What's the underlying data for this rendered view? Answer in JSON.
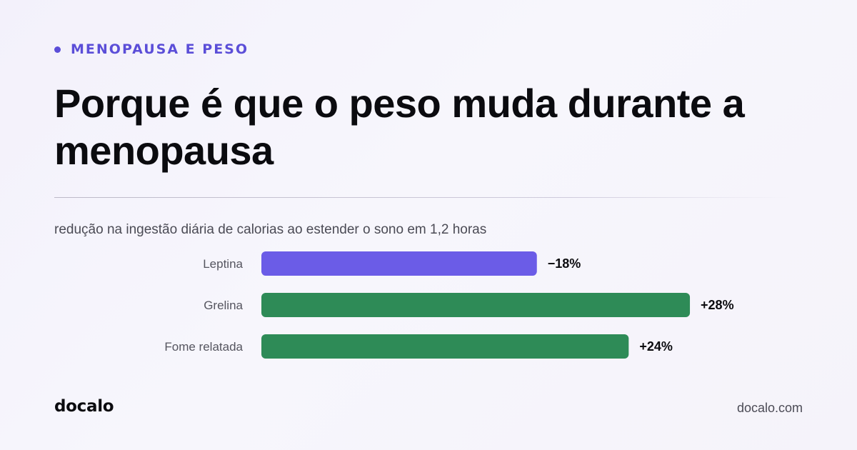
{
  "header": {
    "kicker": "MENOPAUSA E PESO",
    "title": "Porque é que o peso muda durante a menopausa",
    "subtitle": "redução na ingestão diária de calorias ao estender o sono em 1,2 horas"
  },
  "chart_data": {
    "type": "bar",
    "orientation": "horizontal",
    "title": "",
    "xlabel": "",
    "ylabel": "",
    "categories": [
      "Leptina",
      "Grelina",
      "Fome relatada"
    ],
    "values": [
      -18,
      28,
      24
    ],
    "value_labels": [
      "−18%",
      "+28%",
      "+24%"
    ],
    "bar_colors": [
      "#6b5ce7",
      "#2e8b57",
      "#2e8b57"
    ],
    "grid": false,
    "legend": "none"
  },
  "footer": {
    "brand": "docalo",
    "url": "docalo.com"
  },
  "colors": {
    "accent": "#5b4ed8",
    "negative_bar": "#6b5ce7",
    "positive_bar": "#2e8b57",
    "background": "#f5f3fb"
  }
}
